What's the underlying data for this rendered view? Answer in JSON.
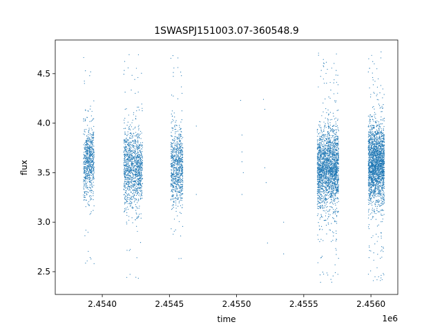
{
  "chart_data": {
    "type": "scatter",
    "title": "1SWASPJ151003.07-360548.9",
    "xlabel": "time",
    "ylabel": "flux",
    "x_offset_label": "1e6",
    "x_multiplier": 1000000,
    "xlim": [
      2.45365,
      2.4562
    ],
    "ylim": [
      2.27,
      4.84
    ],
    "xticks": [
      2.454,
      2.4545,
      2.455,
      2.4555,
      2.456
    ],
    "xtick_labels": [
      "2.4540",
      "2.4545",
      "2.4550",
      "2.4555",
      "2.4560"
    ],
    "yticks": [
      2.5,
      3.0,
      3.5,
      4.0,
      4.5
    ],
    "ytick_labels": [
      "2.5",
      "3.0",
      "3.5",
      "4.0",
      "4.5"
    ],
    "grid": false,
    "marker_color": "#1f77b4",
    "clusters": [
      {
        "x_start": 2.45386,
        "x_end": 2.45394,
        "flux_center": 3.6,
        "flux_spread": 0.18,
        "y_min": 2.44,
        "y_max": 4.73,
        "points": 700
      },
      {
        "x_start": 2.45416,
        "x_end": 2.4543,
        "flux_center": 3.55,
        "flux_spread": 0.2,
        "y_min": 2.4,
        "y_max": 4.72,
        "points": 1200
      },
      {
        "x_start": 2.45451,
        "x_end": 2.4546,
        "flux_center": 3.55,
        "flux_spread": 0.2,
        "y_min": 2.45,
        "y_max": 4.73,
        "points": 800
      },
      {
        "x_start": 2.4556,
        "x_end": 2.45576,
        "flux_center": 3.55,
        "flux_spread": 0.2,
        "y_min": 2.39,
        "y_max": 4.73,
        "points": 2200
      },
      {
        "x_start": 2.45598,
        "x_end": 2.4561,
        "flux_center": 3.6,
        "flux_spread": 0.2,
        "y_min": 2.4,
        "y_max": 4.73,
        "points": 2200
      }
    ],
    "sparse_points": [
      {
        "x": 2.4547,
        "y": 3.97
      },
      {
        "x": 2.4547,
        "y": 3.28
      },
      {
        "x": 2.45503,
        "y": 4.23
      },
      {
        "x": 2.45504,
        "y": 3.88
      },
      {
        "x": 2.45504,
        "y": 3.71
      },
      {
        "x": 2.45504,
        "y": 3.61
      },
      {
        "x": 2.45505,
        "y": 3.5
      },
      {
        "x": 2.45504,
        "y": 3.28
      },
      {
        "x": 2.4552,
        "y": 4.24
      },
      {
        "x": 2.45521,
        "y": 4.14
      },
      {
        "x": 2.45521,
        "y": 3.55
      },
      {
        "x": 2.45522,
        "y": 3.4
      },
      {
        "x": 2.45523,
        "y": 2.79
      },
      {
        "x": 2.45535,
        "y": 3.0
      },
      {
        "x": 2.45535,
        "y": 2.68
      }
    ]
  }
}
